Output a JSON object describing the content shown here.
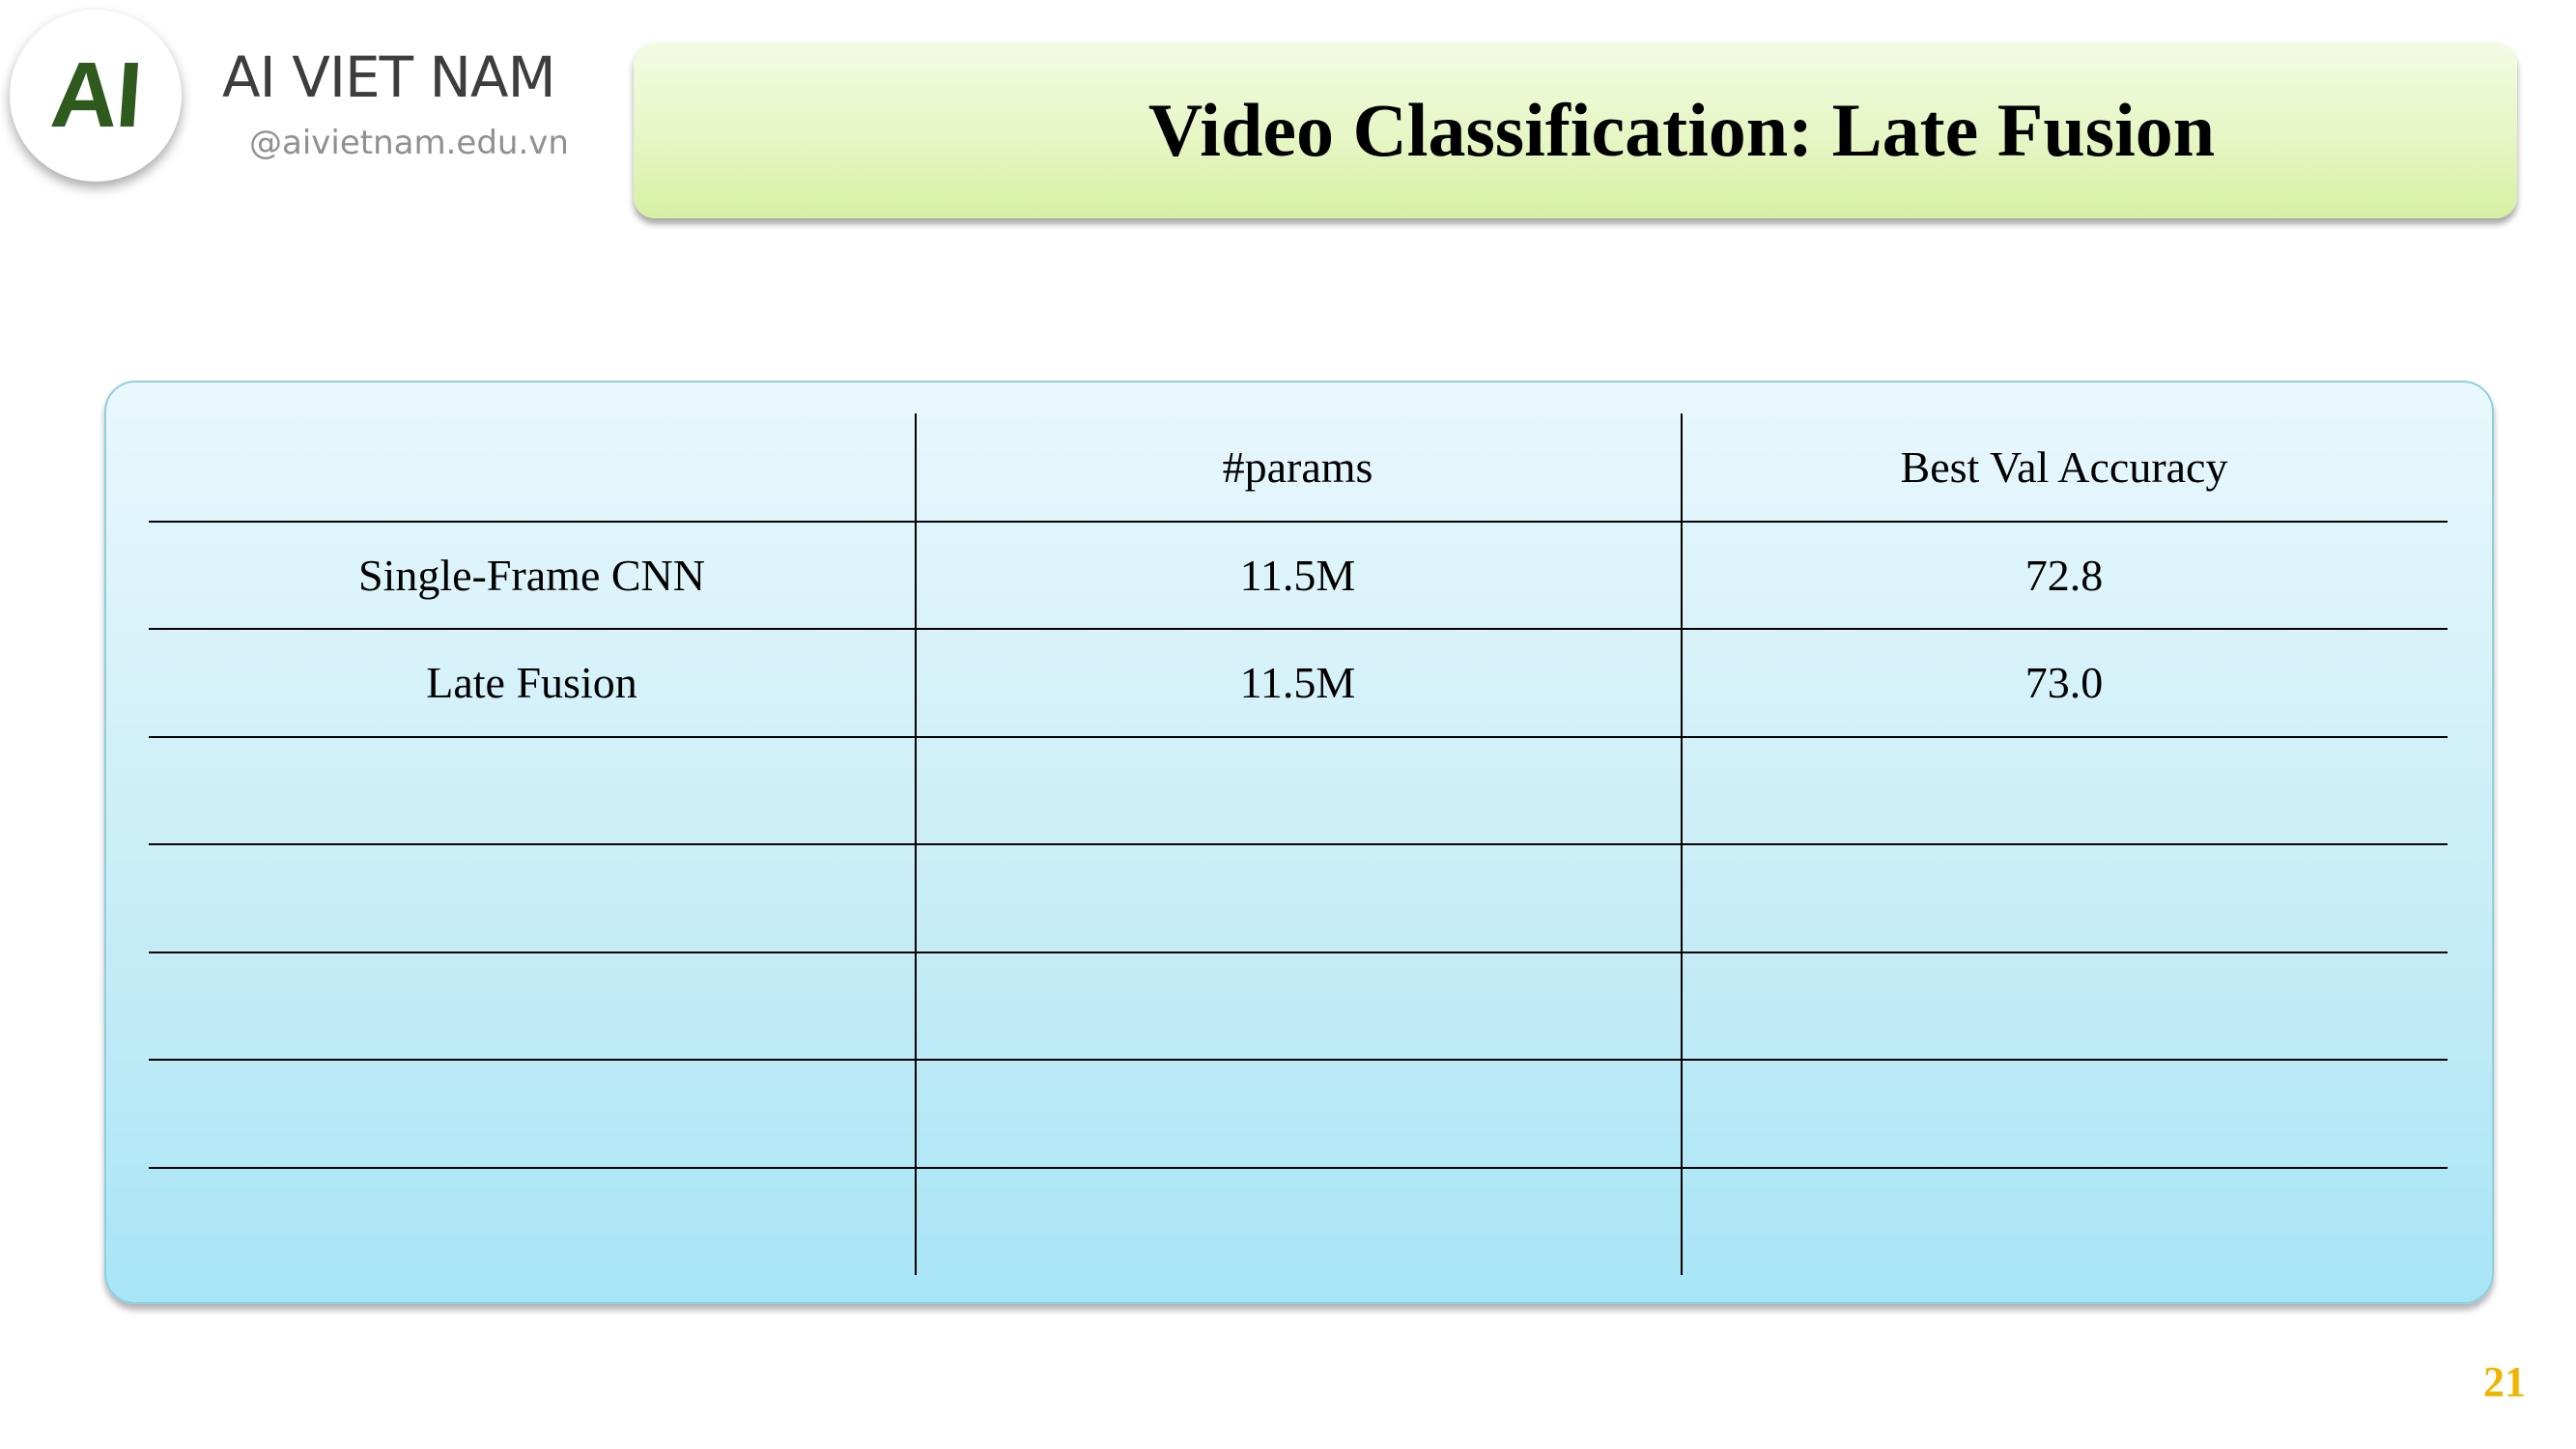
{
  "brand": {
    "logo_text": "AI",
    "name": "AI VIET NAM",
    "url": "@aivietnam.edu.vn"
  },
  "title": "Video Classification: Late Fusion",
  "table": {
    "headers": [
      "",
      "#params",
      "Best Val Accuracy"
    ],
    "rows": [
      [
        "Single-Frame CNN",
        "11.5M",
        "72.8"
      ],
      [
        "Late Fusion",
        "11.5M",
        "73.0"
      ],
      [
        "",
        "",
        ""
      ],
      [
        "",
        "",
        ""
      ],
      [
        "",
        "",
        ""
      ],
      [
        "",
        "",
        ""
      ],
      [
        "",
        "",
        ""
      ]
    ]
  },
  "page_number": "21",
  "colors": {
    "title_banner": "#e6f6c4",
    "table_background": "#c6ecf6",
    "page_number": "#f0b400",
    "logo": "#2f5a1e"
  }
}
